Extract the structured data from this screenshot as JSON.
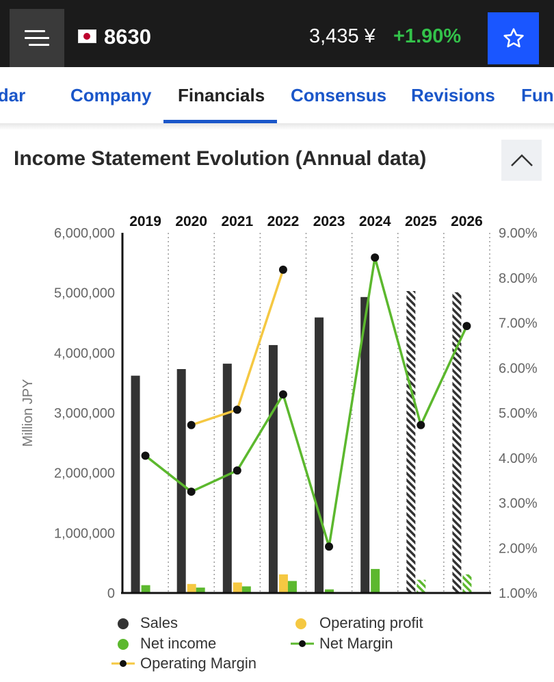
{
  "header": {
    "menu_icon": "hamburger-icon",
    "flag_icon": "japan-flag-icon",
    "ticker": "8630",
    "price": "3,435 ¥",
    "change": "+1.90%",
    "star_icon": "star-icon"
  },
  "tabs": [
    {
      "label": "Calendar",
      "active": false
    },
    {
      "label": "Company",
      "active": false
    },
    {
      "label": "Financials",
      "active": true
    },
    {
      "label": "Consensus",
      "active": false
    },
    {
      "label": "Revisions",
      "active": false
    },
    {
      "label": "Fundamentals",
      "active": false
    }
  ],
  "section": {
    "title": "Income Statement Evolution (Annual data)",
    "collapse_icon": "chevron-up-icon"
  },
  "colors": {
    "sales": "#333333",
    "operating_profit": "#f5c842",
    "net_income": "#5cb82e",
    "net_margin": "#5cb82e",
    "operating_margin": "#f5c842",
    "accent": "#1a56c9",
    "star_button": "#1a56ff",
    "positive_change": "#33c24a"
  },
  "chart_data": {
    "type": "bar",
    "categories": [
      "2019",
      "2020",
      "2021",
      "2022",
      "2023",
      "2024",
      "2025",
      "2026"
    ],
    "ylabel": "Million JPY",
    "ylim": [
      0,
      6000000
    ],
    "y_ticks": [
      "0",
      "1,000,000",
      "2,000,000",
      "3,000,000",
      "4,000,000",
      "5,000,000",
      "6,000,000"
    ],
    "y2lim": [
      1.0,
      9.0
    ],
    "y2_ticks": [
      "1.00%",
      "2.00%",
      "3.00%",
      "4.00%",
      "5.00%",
      "6.00%",
      "7.00%",
      "8.00%",
      "9.00%"
    ],
    "estimated_from_index": 6,
    "series": [
      {
        "name": "Sales",
        "kind": "bar",
        "axis": "left",
        "values": [
          3620000,
          3730000,
          3820000,
          4130000,
          4590000,
          4930000,
          5030000,
          5010000
        ]
      },
      {
        "name": "Operating profit",
        "kind": "bar",
        "axis": "left",
        "values": [
          null,
          150000,
          175000,
          310000,
          null,
          null,
          null,
          null
        ]
      },
      {
        "name": "Net income",
        "kind": "bar",
        "axis": "left",
        "values": [
          130000,
          90000,
          110000,
          200000,
          60000,
          400000,
          220000,
          310000
        ]
      },
      {
        "name": "Net Margin",
        "kind": "line",
        "axis": "right",
        "values": [
          4.05,
          3.25,
          3.72,
          5.41,
          2.03,
          8.45,
          4.73,
          6.93
        ]
      },
      {
        "name": "Operating Margin",
        "kind": "line",
        "axis": "right",
        "values": [
          null,
          4.73,
          5.07,
          8.18,
          null,
          null,
          null,
          null
        ]
      }
    ],
    "legend": [
      "Sales",
      "Operating profit",
      "Net income",
      "Net Margin",
      "Operating Margin"
    ],
    "legend_position": "bottom"
  }
}
